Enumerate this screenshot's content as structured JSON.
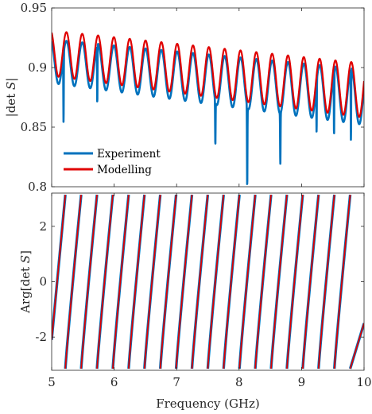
{
  "chart_data": [
    {
      "type": "line",
      "xlabel": "",
      "ylabel": "|det S|",
      "ylabel_parts": {
        "pre": "|det ",
        "var": "S",
        "post": "|"
      },
      "xlim": [
        5,
        10
      ],
      "ylim": [
        0.8,
        0.95
      ],
      "xticks": [
        "5",
        "6",
        "7",
        "8",
        "9",
        "10"
      ],
      "xticks_shown": false,
      "yticks": [
        "0.8",
        "0.85",
        "0.9",
        "0.95"
      ],
      "legend": {
        "placement": "lower-left",
        "entries": [
          "Experiment",
          "Modelling"
        ]
      },
      "grid": false,
      "series": [
        {
          "name": "Experiment",
          "color": "#0072BD",
          "model": {
            "f_start": 4.983,
            "period": 0.2533,
            "peak_start": 0.9235,
            "peak_slope": -0.005,
            "valley_start": 0.887,
            "valley_slope": -0.007,
            "dips": [
              {
                "x": 5.19,
                "y": 0.854
              },
              {
                "x": 5.73,
                "y": 0.87
              },
              {
                "x": 7.62,
                "y": 0.835
              },
              {
                "x": 8.13,
                "y": 0.8
              },
              {
                "x": 8.66,
                "y": 0.819
              },
              {
                "x": 9.24,
                "y": 0.846
              },
              {
                "x": 9.52,
                "y": 0.843
              },
              {
                "x": 9.79,
                "y": 0.839
              }
            ]
          }
        },
        {
          "name": "Modelling",
          "color": "#E00000",
          "model": {
            "f_start": 4.983,
            "period": 0.2533,
            "peak_start": 0.931,
            "peak_slope": -0.0055,
            "valley_start": 0.893,
            "valley_slope": -0.007,
            "dips": []
          }
        }
      ]
    },
    {
      "type": "line",
      "xlabel": "Frequency (GHz)",
      "ylabel": "Arg[det S]",
      "ylabel_parts": {
        "pre": "Arg[det ",
        "var": "S",
        "post": "]"
      },
      "xlim": [
        5,
        10
      ],
      "ylim": [
        -3.2,
        3.2
      ],
      "xticks": [
        "5",
        "6",
        "7",
        "8",
        "9",
        "10"
      ],
      "yticks": [
        "-2",
        "0",
        "2"
      ],
      "ytick_values": [
        -2,
        0,
        2
      ],
      "grid": false,
      "series": [
        {
          "name": "Experiment",
          "color": "#0072BD",
          "model": {
            "wrap_start": 5.219,
            "period": 0.2533,
            "phase_at_xmin": -2.1,
            "phase_at_xmax": -1.5
          }
        },
        {
          "name": "Modelling",
          "color": "#E00000",
          "model": {
            "wrap_start": 5.219,
            "period": 0.2533,
            "phase_at_xmin": -2.1,
            "phase_at_xmax": -1.5
          }
        }
      ]
    }
  ]
}
